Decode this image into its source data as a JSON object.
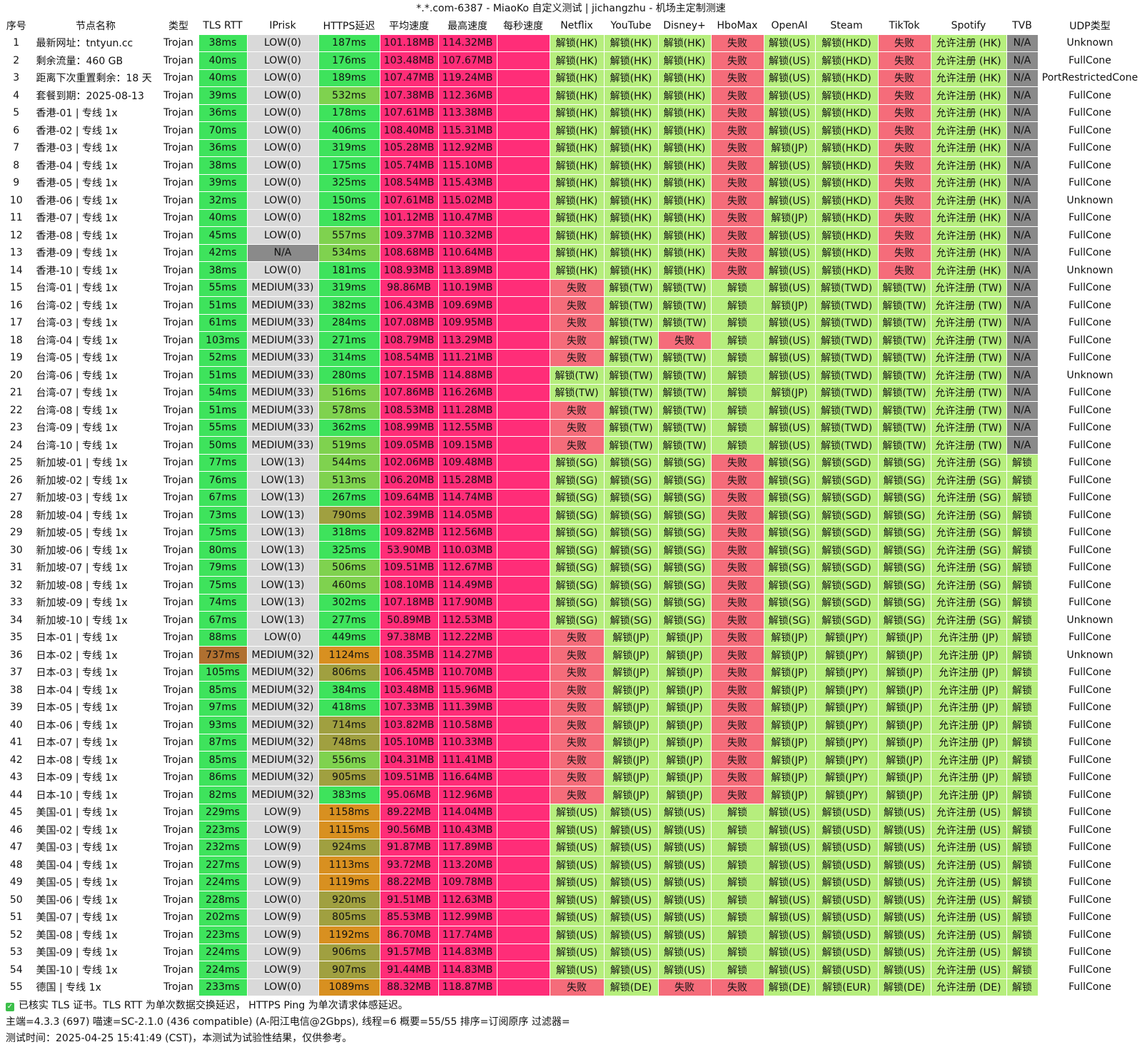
{
  "window": {
    "title": "*.*.com-6387 - MiaoKo 自定义测试 | jichangzhu - 机场主定制测速"
  },
  "columns": [
    "序号",
    "节点名称",
    "类型",
    "TLS RTT",
    "IPrisk",
    "HTTPS延迟",
    "平均速度",
    "最高速度",
    "每秒速度",
    "Netflix",
    "YouTube",
    "Disney+",
    "HboMax",
    "OpenAI",
    "Steam",
    "TikTok",
    "Spotify",
    "TVB",
    "UDP类型"
  ],
  "rows": [
    [
      "1",
      "最新网址：tntyun.cc",
      "Trojan",
      "38ms",
      "LOW(0)",
      "187ms",
      "101.18MB",
      "114.32MB",
      "",
      "解锁(HK)",
      "解锁(HK)",
      "解锁(HK)",
      "失败",
      "解锁(US)",
      "解锁(HKD)",
      "失败",
      "允许注册 (HK)",
      "N/A",
      "Unknown"
    ],
    [
      "2",
      "剩余流量：460 GB",
      "Trojan",
      "40ms",
      "LOW(0)",
      "176ms",
      "103.48MB",
      "107.67MB",
      "",
      "解锁(HK)",
      "解锁(HK)",
      "解锁(HK)",
      "失败",
      "解锁(US)",
      "解锁(HKD)",
      "失败",
      "允许注册 (HK)",
      "N/A",
      "FullCone"
    ],
    [
      "3",
      "距离下次重置剩余：18 天",
      "Trojan",
      "40ms",
      "LOW(0)",
      "189ms",
      "107.47MB",
      "119.24MB",
      "",
      "解锁(HK)",
      "解锁(HK)",
      "解锁(HK)",
      "失败",
      "解锁(US)",
      "解锁(HKD)",
      "失败",
      "允许注册 (HK)",
      "N/A",
      "PortRestrictedCone"
    ],
    [
      "4",
      "套餐到期：2025-08-13",
      "Trojan",
      "39ms",
      "LOW(0)",
      "532ms",
      "107.38MB",
      "112.36MB",
      "",
      "解锁(HK)",
      "解锁(HK)",
      "解锁(HK)",
      "失败",
      "解锁(US)",
      "解锁(HKD)",
      "失败",
      "允许注册 (HK)",
      "N/A",
      "FullCone"
    ],
    [
      "5",
      "香港-01 | 专线 1x",
      "Trojan",
      "36ms",
      "LOW(0)",
      "178ms",
      "107.61MB",
      "113.38MB",
      "",
      "解锁(HK)",
      "解锁(HK)",
      "解锁(HK)",
      "失败",
      "解锁(US)",
      "解锁(HKD)",
      "失败",
      "允许注册 (HK)",
      "N/A",
      "FullCone"
    ],
    [
      "6",
      "香港-02 | 专线 1x",
      "Trojan",
      "70ms",
      "LOW(0)",
      "406ms",
      "108.40MB",
      "115.31MB",
      "",
      "解锁(HK)",
      "解锁(HK)",
      "解锁(HK)",
      "失败",
      "解锁(US)",
      "解锁(HKD)",
      "失败",
      "允许注册 (HK)",
      "N/A",
      "FullCone"
    ],
    [
      "7",
      "香港-03 | 专线 1x",
      "Trojan",
      "36ms",
      "LOW(0)",
      "319ms",
      "105.28MB",
      "112.92MB",
      "",
      "解锁(HK)",
      "解锁(HK)",
      "解锁(HK)",
      "失败",
      "解锁(JP)",
      "解锁(HKD)",
      "失败",
      "允许注册 (HK)",
      "N/A",
      "FullCone"
    ],
    [
      "8",
      "香港-04 | 专线 1x",
      "Trojan",
      "38ms",
      "LOW(0)",
      "175ms",
      "105.74MB",
      "115.10MB",
      "",
      "解锁(HK)",
      "解锁(HK)",
      "解锁(HK)",
      "失败",
      "解锁(US)",
      "解锁(HKD)",
      "失败",
      "允许注册 (HK)",
      "N/A",
      "FullCone"
    ],
    [
      "9",
      "香港-05 | 专线 1x",
      "Trojan",
      "39ms",
      "LOW(0)",
      "325ms",
      "108.54MB",
      "115.43MB",
      "",
      "解锁(HK)",
      "解锁(HK)",
      "解锁(HK)",
      "失败",
      "解锁(US)",
      "解锁(HKD)",
      "失败",
      "允许注册 (HK)",
      "N/A",
      "FullCone"
    ],
    [
      "10",
      "香港-06 | 专线 1x",
      "Trojan",
      "32ms",
      "LOW(0)",
      "150ms",
      "107.61MB",
      "115.02MB",
      "",
      "解锁(HK)",
      "解锁(HK)",
      "解锁(HK)",
      "失败",
      "解锁(US)",
      "解锁(HKD)",
      "失败",
      "允许注册 (HK)",
      "N/A",
      "Unknown"
    ],
    [
      "11",
      "香港-07 | 专线 1x",
      "Trojan",
      "40ms",
      "LOW(0)",
      "182ms",
      "101.12MB",
      "110.47MB",
      "",
      "解锁(HK)",
      "解锁(HK)",
      "解锁(HK)",
      "失败",
      "解锁(JP)",
      "解锁(HKD)",
      "失败",
      "允许注册 (HK)",
      "N/A",
      "FullCone"
    ],
    [
      "12",
      "香港-08 | 专线 1x",
      "Trojan",
      "45ms",
      "LOW(0)",
      "557ms",
      "109.37MB",
      "110.32MB",
      "",
      "解锁(HK)",
      "解锁(HK)",
      "解锁(HK)",
      "失败",
      "解锁(US)",
      "解锁(HKD)",
      "失败",
      "允许注册 (HK)",
      "N/A",
      "FullCone"
    ],
    [
      "13",
      "香港-09 | 专线 1x",
      "Trojan",
      "42ms",
      "N/A",
      "534ms",
      "108.68MB",
      "110.64MB",
      "",
      "解锁(HK)",
      "解锁(HK)",
      "解锁(HK)",
      "失败",
      "解锁(US)",
      "解锁(HKD)",
      "失败",
      "允许注册 (HK)",
      "N/A",
      "FullCone"
    ],
    [
      "14",
      "香港-10 | 专线 1x",
      "Trojan",
      "38ms",
      "LOW(0)",
      "181ms",
      "108.93MB",
      "113.89MB",
      "",
      "解锁(HK)",
      "解锁(HK)",
      "解锁(HK)",
      "失败",
      "解锁(US)",
      "解锁(HKD)",
      "失败",
      "允许注册 (HK)",
      "N/A",
      "Unknown"
    ],
    [
      "15",
      "台湾-01 | 专线 1x",
      "Trojan",
      "55ms",
      "MEDIUM(33)",
      "319ms",
      "98.86MB",
      "110.19MB",
      "",
      "失败",
      "解锁(TW)",
      "解锁(TW)",
      "解锁",
      "解锁(US)",
      "解锁(TWD)",
      "解锁(TW)",
      "允许注册 (TW)",
      "N/A",
      "FullCone"
    ],
    [
      "16",
      "台湾-02 | 专线 1x",
      "Trojan",
      "51ms",
      "MEDIUM(33)",
      "382ms",
      "106.43MB",
      "109.69MB",
      "",
      "失败",
      "解锁(TW)",
      "解锁(TW)",
      "解锁",
      "解锁(JP)",
      "解锁(TWD)",
      "解锁(TW)",
      "允许注册 (TW)",
      "N/A",
      "FullCone"
    ],
    [
      "17",
      "台湾-03 | 专线 1x",
      "Trojan",
      "61ms",
      "MEDIUM(33)",
      "284ms",
      "107.08MB",
      "109.95MB",
      "",
      "失败",
      "解锁(TW)",
      "解锁(TW)",
      "解锁",
      "解锁(US)",
      "解锁(TWD)",
      "解锁(TW)",
      "允许注册 (TW)",
      "N/A",
      "FullCone"
    ],
    [
      "18",
      "台湾-04 | 专线 1x",
      "Trojan",
      "103ms",
      "MEDIUM(33)",
      "271ms",
      "108.79MB",
      "113.29MB",
      "",
      "失败",
      "解锁(TW)",
      "失败",
      "解锁",
      "解锁(US)",
      "解锁(TWD)",
      "解锁(TW)",
      "允许注册 (TW)",
      "N/A",
      "FullCone"
    ],
    [
      "19",
      "台湾-05 | 专线 1x",
      "Trojan",
      "52ms",
      "MEDIUM(33)",
      "314ms",
      "108.54MB",
      "111.21MB",
      "",
      "失败",
      "解锁(TW)",
      "解锁(TW)",
      "解锁",
      "解锁(US)",
      "解锁(TWD)",
      "解锁(TW)",
      "允许注册 (TW)",
      "N/A",
      "FullCone"
    ],
    [
      "20",
      "台湾-06 | 专线 1x",
      "Trojan",
      "51ms",
      "MEDIUM(33)",
      "280ms",
      "107.15MB",
      "114.88MB",
      "",
      "解锁(TW)",
      "解锁(TW)",
      "解锁(TW)",
      "解锁",
      "解锁(US)",
      "解锁(TWD)",
      "解锁(TW)",
      "允许注册 (TW)",
      "N/A",
      "Unknown"
    ],
    [
      "21",
      "台湾-07 | 专线 1x",
      "Trojan",
      "54ms",
      "MEDIUM(33)",
      "516ms",
      "107.86MB",
      "116.26MB",
      "",
      "解锁(TW)",
      "解锁(TW)",
      "解锁(TW)",
      "解锁",
      "解锁(JP)",
      "解锁(TWD)",
      "解锁(TW)",
      "允许注册 (TW)",
      "N/A",
      "FullCone"
    ],
    [
      "22",
      "台湾-08 | 专线 1x",
      "Trojan",
      "51ms",
      "MEDIUM(33)",
      "578ms",
      "108.53MB",
      "111.28MB",
      "",
      "失败",
      "解锁(TW)",
      "解锁(TW)",
      "解锁",
      "解锁(US)",
      "解锁(TWD)",
      "解锁(TW)",
      "允许注册 (TW)",
      "N/A",
      "FullCone"
    ],
    [
      "23",
      "台湾-09 | 专线 1x",
      "Trojan",
      "55ms",
      "MEDIUM(33)",
      "362ms",
      "108.99MB",
      "112.55MB",
      "",
      "失败",
      "解锁(TW)",
      "解锁(TW)",
      "解锁",
      "解锁(US)",
      "解锁(TWD)",
      "解锁(TW)",
      "允许注册 (TW)",
      "N/A",
      "FullCone"
    ],
    [
      "24",
      "台湾-10 | 专线 1x",
      "Trojan",
      "50ms",
      "MEDIUM(33)",
      "519ms",
      "109.05MB",
      "109.15MB",
      "",
      "失败",
      "解锁(TW)",
      "解锁(TW)",
      "解锁",
      "解锁(US)",
      "解锁(TWD)",
      "解锁(TW)",
      "允许注册 (TW)",
      "N/A",
      "FullCone"
    ],
    [
      "25",
      "新加坡-01 | 专线 1x",
      "Trojan",
      "77ms",
      "LOW(13)",
      "544ms",
      "102.06MB",
      "109.48MB",
      "",
      "解锁(SG)",
      "解锁(SG)",
      "解锁(SG)",
      "失败",
      "解锁(SG)",
      "解锁(SGD)",
      "解锁(SG)",
      "允许注册 (SG)",
      "解锁",
      "FullCone"
    ],
    [
      "26",
      "新加坡-02 | 专线 1x",
      "Trojan",
      "76ms",
      "LOW(13)",
      "513ms",
      "106.20MB",
      "115.28MB",
      "",
      "解锁(SG)",
      "解锁(SG)",
      "解锁(SG)",
      "失败",
      "解锁(SG)",
      "解锁(SGD)",
      "解锁(SG)",
      "允许注册 (SG)",
      "解锁",
      "FullCone"
    ],
    [
      "27",
      "新加坡-03 | 专线 1x",
      "Trojan",
      "67ms",
      "LOW(13)",
      "267ms",
      "109.64MB",
      "114.74MB",
      "",
      "解锁(SG)",
      "解锁(SG)",
      "解锁(SG)",
      "失败",
      "解锁(SG)",
      "解锁(SGD)",
      "解锁(SG)",
      "允许注册 (SG)",
      "解锁",
      "FullCone"
    ],
    [
      "28",
      "新加坡-04 | 专线 1x",
      "Trojan",
      "73ms",
      "LOW(13)",
      "790ms",
      "102.39MB",
      "114.05MB",
      "",
      "解锁(SG)",
      "解锁(SG)",
      "解锁(SG)",
      "失败",
      "解锁(SG)",
      "解锁(SGD)",
      "解锁(SG)",
      "允许注册 (SG)",
      "解锁",
      "FullCone"
    ],
    [
      "29",
      "新加坡-05 | 专线 1x",
      "Trojan",
      "75ms",
      "LOW(13)",
      "318ms",
      "109.82MB",
      "112.56MB",
      "",
      "解锁(SG)",
      "解锁(SG)",
      "解锁(SG)",
      "失败",
      "解锁(SG)",
      "解锁(SGD)",
      "解锁(SG)",
      "允许注册 (SG)",
      "解锁",
      "FullCone"
    ],
    [
      "30",
      "新加坡-06 | 专线 1x",
      "Trojan",
      "80ms",
      "LOW(13)",
      "325ms",
      "53.90MB",
      "110.03MB",
      "",
      "解锁(SG)",
      "解锁(SG)",
      "解锁(SG)",
      "失败",
      "解锁(SG)",
      "解锁(SGD)",
      "解锁(SG)",
      "允许注册 (SG)",
      "解锁",
      "FullCone"
    ],
    [
      "31",
      "新加坡-07 | 专线 1x",
      "Trojan",
      "79ms",
      "LOW(13)",
      "506ms",
      "109.51MB",
      "112.67MB",
      "",
      "解锁(SG)",
      "解锁(SG)",
      "解锁(SG)",
      "失败",
      "解锁(SG)",
      "解锁(SGD)",
      "解锁(SG)",
      "允许注册 (SG)",
      "解锁",
      "FullCone"
    ],
    [
      "32",
      "新加坡-08 | 专线 1x",
      "Trojan",
      "75ms",
      "LOW(13)",
      "460ms",
      "108.10MB",
      "114.49MB",
      "",
      "解锁(SG)",
      "解锁(SG)",
      "解锁(SG)",
      "失败",
      "解锁(SG)",
      "解锁(SGD)",
      "解锁(SG)",
      "允许注册 (SG)",
      "解锁",
      "FullCone"
    ],
    [
      "33",
      "新加坡-09 | 专线 1x",
      "Trojan",
      "74ms",
      "LOW(13)",
      "302ms",
      "107.18MB",
      "117.90MB",
      "",
      "解锁(SG)",
      "解锁(SG)",
      "解锁(SG)",
      "失败",
      "解锁(SG)",
      "解锁(SGD)",
      "解锁(SG)",
      "允许注册 (SG)",
      "解锁",
      "FullCone"
    ],
    [
      "34",
      "新加坡-10 | 专线 1x",
      "Trojan",
      "67ms",
      "LOW(13)",
      "277ms",
      "50.89MB",
      "112.53MB",
      "",
      "解锁(SG)",
      "解锁(SG)",
      "解锁(SG)",
      "失败",
      "解锁(SG)",
      "解锁(SGD)",
      "解锁(SG)",
      "允许注册 (SG)",
      "解锁",
      "Unknown"
    ],
    [
      "35",
      "日本-01 | 专线 1x",
      "Trojan",
      "88ms",
      "LOW(0)",
      "449ms",
      "97.38MB",
      "112.22MB",
      "",
      "失败",
      "解锁(JP)",
      "解锁(JP)",
      "失败",
      "解锁(JP)",
      "解锁(JPY)",
      "解锁(JP)",
      "允许注册 (JP)",
      "解锁",
      "FullCone"
    ],
    [
      "36",
      "日本-02 | 专线 1x",
      "Trojan",
      "737ms",
      "MEDIUM(32)",
      "1124ms",
      "108.35MB",
      "114.27MB",
      "",
      "失败",
      "解锁(JP)",
      "解锁(JP)",
      "失败",
      "解锁(JP)",
      "解锁(JPY)",
      "解锁(JP)",
      "允许注册 (JP)",
      "解锁",
      "Unknown"
    ],
    [
      "37",
      "日本-03 | 专线 1x",
      "Trojan",
      "105ms",
      "MEDIUM(32)",
      "806ms",
      "106.45MB",
      "110.70MB",
      "",
      "失败",
      "解锁(JP)",
      "解锁(JP)",
      "失败",
      "解锁(JP)",
      "解锁(JPY)",
      "解锁(JP)",
      "允许注册 (JP)",
      "解锁",
      "FullCone"
    ],
    [
      "38",
      "日本-04 | 专线 1x",
      "Trojan",
      "85ms",
      "MEDIUM(32)",
      "384ms",
      "103.48MB",
      "115.96MB",
      "",
      "失败",
      "解锁(JP)",
      "解锁(JP)",
      "失败",
      "解锁(JP)",
      "解锁(JPY)",
      "解锁(JP)",
      "允许注册 (JP)",
      "解锁",
      "FullCone"
    ],
    [
      "39",
      "日本-05 | 专线 1x",
      "Trojan",
      "97ms",
      "MEDIUM(32)",
      "418ms",
      "107.33MB",
      "111.39MB",
      "",
      "失败",
      "解锁(JP)",
      "解锁(JP)",
      "失败",
      "解锁(JP)",
      "解锁(JPY)",
      "解锁(JP)",
      "允许注册 (JP)",
      "解锁",
      "FullCone"
    ],
    [
      "40",
      "日本-06 | 专线 1x",
      "Trojan",
      "93ms",
      "MEDIUM(32)",
      "714ms",
      "103.82MB",
      "110.58MB",
      "",
      "失败",
      "解锁(JP)",
      "解锁(JP)",
      "失败",
      "解锁(JP)",
      "解锁(JPY)",
      "解锁(JP)",
      "允许注册 (JP)",
      "解锁",
      "FullCone"
    ],
    [
      "41",
      "日本-07 | 专线 1x",
      "Trojan",
      "87ms",
      "MEDIUM(32)",
      "748ms",
      "105.10MB",
      "110.33MB",
      "",
      "失败",
      "解锁(JP)",
      "解锁(JP)",
      "失败",
      "解锁(JP)",
      "解锁(JPY)",
      "解锁(JP)",
      "允许注册 (JP)",
      "解锁",
      "FullCone"
    ],
    [
      "42",
      "日本-08 | 专线 1x",
      "Trojan",
      "85ms",
      "MEDIUM(32)",
      "556ms",
      "104.31MB",
      "111.41MB",
      "",
      "失败",
      "解锁(JP)",
      "解锁(JP)",
      "失败",
      "解锁(JP)",
      "解锁(JPY)",
      "解锁(JP)",
      "允许注册 (JP)",
      "解锁",
      "FullCone"
    ],
    [
      "43",
      "日本-09 | 专线 1x",
      "Trojan",
      "86ms",
      "MEDIUM(32)",
      "905ms",
      "109.51MB",
      "116.64MB",
      "",
      "失败",
      "解锁(JP)",
      "解锁(JP)",
      "失败",
      "解锁(JP)",
      "解锁(JPY)",
      "解锁(JP)",
      "允许注册 (JP)",
      "解锁",
      "FullCone"
    ],
    [
      "44",
      "日本-10 | 专线 1x",
      "Trojan",
      "82ms",
      "MEDIUM(32)",
      "383ms",
      "95.06MB",
      "112.96MB",
      "",
      "失败",
      "解锁(JP)",
      "解锁(JP)",
      "失败",
      "解锁(JP)",
      "解锁(JPY)",
      "解锁(JP)",
      "允许注册 (JP)",
      "解锁",
      "FullCone"
    ],
    [
      "45",
      "美国-01 | 专线 1x",
      "Trojan",
      "229ms",
      "LOW(9)",
      "1158ms",
      "89.22MB",
      "114.04MB",
      "",
      "解锁(US)",
      "解锁(US)",
      "解锁(US)",
      "解锁",
      "解锁(US)",
      "解锁(USD)",
      "解锁(US)",
      "允许注册 (US)",
      "解锁",
      "FullCone"
    ],
    [
      "46",
      "美国-02 | 专线 1x",
      "Trojan",
      "223ms",
      "LOW(9)",
      "1115ms",
      "90.56MB",
      "110.43MB",
      "",
      "解锁(US)",
      "解锁(US)",
      "解锁(US)",
      "解锁",
      "解锁(US)",
      "解锁(USD)",
      "解锁(US)",
      "允许注册 (US)",
      "解锁",
      "FullCone"
    ],
    [
      "47",
      "美国-03 | 专线 1x",
      "Trojan",
      "232ms",
      "LOW(9)",
      "924ms",
      "91.87MB",
      "117.89MB",
      "",
      "解锁(US)",
      "解锁(US)",
      "解锁(US)",
      "解锁",
      "解锁(US)",
      "解锁(USD)",
      "解锁(US)",
      "允许注册 (US)",
      "解锁",
      "FullCone"
    ],
    [
      "48",
      "美国-04 | 专线 1x",
      "Trojan",
      "227ms",
      "LOW(9)",
      "1113ms",
      "93.72MB",
      "113.20MB",
      "",
      "解锁(US)",
      "解锁(US)",
      "解锁(US)",
      "解锁",
      "解锁(US)",
      "解锁(USD)",
      "解锁(US)",
      "允许注册 (US)",
      "解锁",
      "FullCone"
    ],
    [
      "49",
      "美国-05 | 专线 1x",
      "Trojan",
      "224ms",
      "LOW(9)",
      "1119ms",
      "88.22MB",
      "109.78MB",
      "",
      "解锁(US)",
      "解锁(US)",
      "解锁(US)",
      "解锁",
      "解锁(US)",
      "解锁(USD)",
      "解锁(US)",
      "允许注册 (US)",
      "解锁",
      "FullCone"
    ],
    [
      "50",
      "美国-06 | 专线 1x",
      "Trojan",
      "228ms",
      "LOW(0)",
      "920ms",
      "91.51MB",
      "112.63MB",
      "",
      "解锁(US)",
      "解锁(US)",
      "解锁(US)",
      "解锁",
      "解锁(US)",
      "解锁(USD)",
      "解锁(US)",
      "允许注册 (US)",
      "解锁",
      "FullCone"
    ],
    [
      "51",
      "美国-07 | 专线 1x",
      "Trojan",
      "202ms",
      "LOW(9)",
      "805ms",
      "85.53MB",
      "112.99MB",
      "",
      "解锁(US)",
      "解锁(US)",
      "解锁(US)",
      "解锁",
      "解锁(US)",
      "解锁(USD)",
      "解锁(US)",
      "允许注册 (US)",
      "解锁",
      "FullCone"
    ],
    [
      "52",
      "美国-08 | 专线 1x",
      "Trojan",
      "223ms",
      "LOW(9)",
      "1192ms",
      "86.70MB",
      "117.74MB",
      "",
      "解锁(US)",
      "解锁(US)",
      "解锁(US)",
      "解锁",
      "解锁(US)",
      "解锁(USD)",
      "解锁(US)",
      "允许注册 (US)",
      "解锁",
      "FullCone"
    ],
    [
      "53",
      "美国-09 | 专线 1x",
      "Trojan",
      "224ms",
      "LOW(9)",
      "906ms",
      "91.57MB",
      "114.83MB",
      "",
      "解锁(US)",
      "解锁(US)",
      "解锁(US)",
      "解锁",
      "解锁(US)",
      "解锁(USD)",
      "解锁(US)",
      "允许注册 (US)",
      "解锁",
      "FullCone"
    ],
    [
      "54",
      "美国-10 | 专线 1x",
      "Trojan",
      "224ms",
      "LOW(9)",
      "907ms",
      "91.44MB",
      "114.83MB",
      "",
      "解锁(US)",
      "解锁(US)",
      "解锁(US)",
      "解锁",
      "解锁(US)",
      "解锁(USD)",
      "解锁(US)",
      "允许注册 (US)",
      "解锁",
      "FullCone"
    ],
    [
      "55",
      "德国 | 专线 1x",
      "Trojan",
      "233ms",
      "LOW(0)",
      "1089ms",
      "88.32MB",
      "118.87MB",
      "",
      "失败",
      "解锁(DE)",
      "失败",
      "失败",
      "解锁(DE)",
      "解锁(EUR)",
      "解锁(DE)",
      "允许注册 (DE)",
      "解锁",
      "FullCone"
    ]
  ],
  "footer": {
    "line1": "已核实 TLS 证书。TLS RTT 为单次数据交换延迟， HTTPS Ping 为单次请求体感延迟。",
    "line2": "主端=4.3.3 (697) 喵速=SC-2.1.0 (436 compatible) (A-阳江电信@2Gbps), 线程=6 概要=55/55 排序=订阅原序 过滤器=",
    "line3": "测试时间：2025-04-25 15:41:49 (CST)，本测试为试验性结果，仅供参考。"
  },
  "colors": {
    "speed": "#ff2d78",
    "unlock": "#b6ee7d",
    "fail": "#f56c7a",
    "na": "#8a8a8a",
    "latency_good": "#3ee35c",
    "latency_mid": "#7fd24f",
    "latency_slow": "#a0a040",
    "latency_bad": "#d89020"
  }
}
